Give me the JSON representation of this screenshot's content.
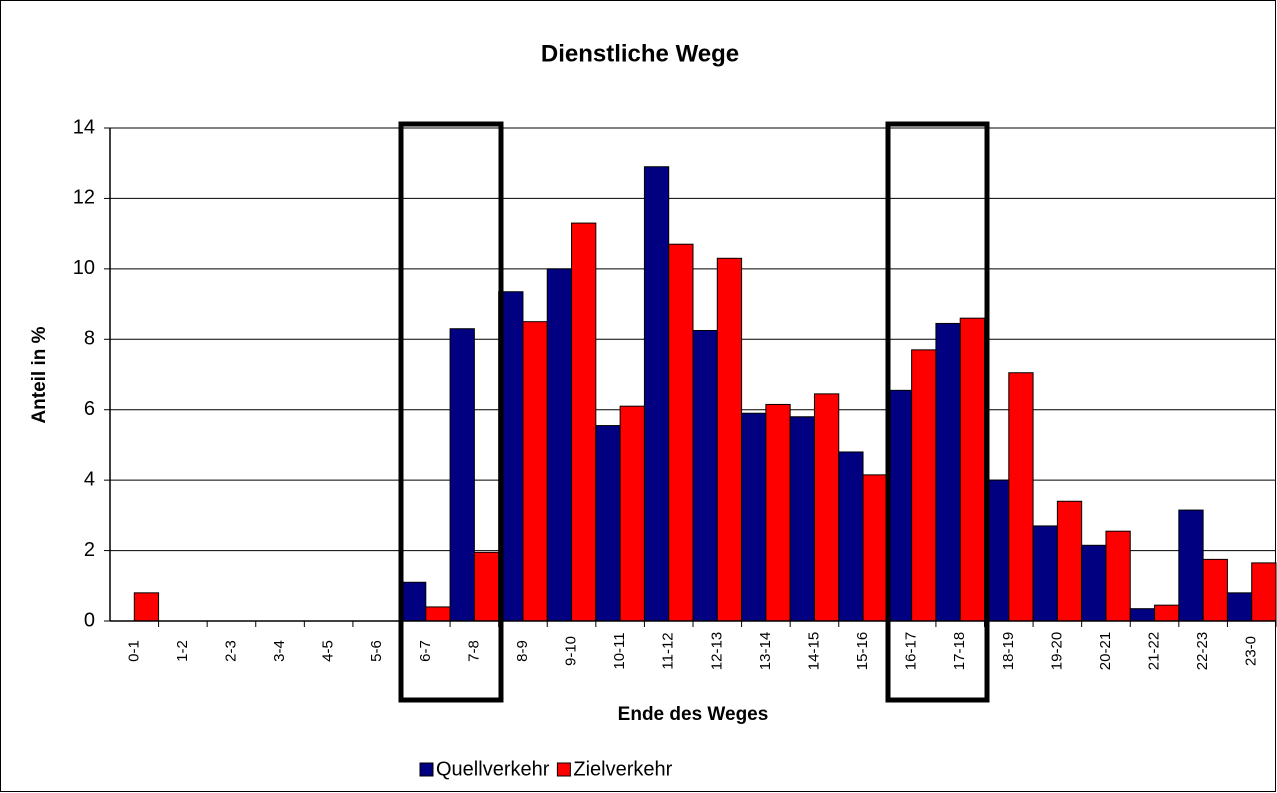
{
  "chart_data": {
    "type": "bar",
    "title": "Dienstliche Wege",
    "x_label": "Ende des Weges",
    "y_label": "Anteil in %",
    "categories": [
      "0-1",
      "1-2",
      "2-3",
      "3-4",
      "4-5",
      "5-6",
      "6-7",
      "7-8",
      "8-9",
      "9-10",
      "10-11",
      "11-12",
      "12-13",
      "13-14",
      "14-15",
      "15-16",
      "16-17",
      "17-18",
      "18-19",
      "19-20",
      "20-21",
      "21-22",
      "22-23",
      "23-0"
    ],
    "series": [
      {
        "name": "Quellverkehr",
        "color": "#000080",
        "values": [
          0,
          0,
          0,
          0,
          0,
          0,
          1.1,
          8.3,
          9.35,
          10.0,
          5.55,
          12.9,
          8.25,
          5.9,
          5.8,
          4.8,
          6.55,
          8.45,
          4.0,
          2.7,
          2.15,
          0.35,
          3.15,
          0.8
        ]
      },
      {
        "name": "Zielverkehr",
        "color": "#ff0000",
        "values": [
          0.8,
          0,
          0,
          0,
          0,
          0,
          0.4,
          1.95,
          8.5,
          11.3,
          6.1,
          10.7,
          10.3,
          6.15,
          6.45,
          4.15,
          7.7,
          8.6,
          7.05,
          3.4,
          2.55,
          0.45,
          1.75,
          1.65
        ]
      }
    ],
    "ylim": [
      0,
      14
    ],
    "yticks": [
      0,
      2,
      4,
      6,
      8,
      10,
      12,
      14
    ],
    "grid": true,
    "legend": "bottom"
  }
}
